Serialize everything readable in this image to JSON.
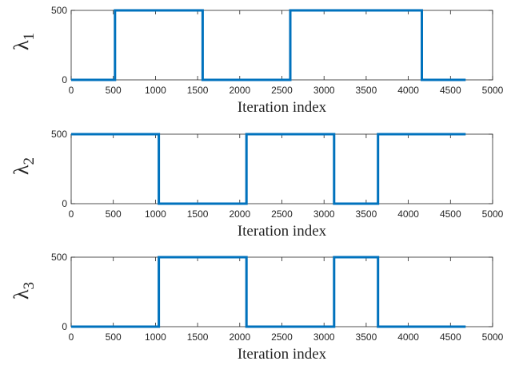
{
  "chart_data": [
    {
      "type": "line",
      "xlabel": "Iteration index",
      "ylabel": "λ",
      "ylabel_subscript": "1",
      "xlim": [
        0,
        5000
      ],
      "ylim": [
        0,
        500
      ],
      "xticks": [
        "0",
        "500",
        "1000",
        "1500",
        "2000",
        "2500",
        "3000",
        "3500",
        "4000",
        "4500",
        "5000"
      ],
      "yticks": [
        "0",
        "500"
      ],
      "grid": false,
      "series": [
        {
          "color": "#0072bd",
          "x": [
            0,
            520,
            520,
            1560,
            1560,
            2600,
            2600,
            4160,
            4160,
            4680
          ],
          "y": [
            0,
            0,
            500,
            500,
            0,
            0,
            500,
            500,
            0,
            0
          ]
        }
      ]
    },
    {
      "type": "line",
      "xlabel": "Iteration index",
      "ylabel": "λ",
      "ylabel_subscript": "2",
      "xlim": [
        0,
        5000
      ],
      "ylim": [
        0,
        500
      ],
      "xticks": [
        "0",
        "500",
        "1000",
        "1500",
        "2000",
        "2500",
        "3000",
        "3500",
        "4000",
        "4500",
        "5000"
      ],
      "yticks": [
        "0",
        "500"
      ],
      "grid": false,
      "series": [
        {
          "color": "#0072bd",
          "x": [
            0,
            1040,
            1040,
            2080,
            2080,
            3120,
            3120,
            3640,
            3640,
            4680
          ],
          "y": [
            500,
            500,
            0,
            0,
            500,
            500,
            0,
            0,
            500,
            500
          ]
        }
      ]
    },
    {
      "type": "line",
      "xlabel": "Iteration index",
      "ylabel": "λ",
      "ylabel_subscript": "3",
      "xlim": [
        0,
        5000
      ],
      "ylim": [
        0,
        500
      ],
      "xticks": [
        "0",
        "500",
        "1000",
        "1500",
        "2000",
        "2500",
        "3000",
        "3500",
        "4000",
        "4500",
        "5000"
      ],
      "yticks": [
        "0",
        "500"
      ],
      "grid": false,
      "series": [
        {
          "color": "#0072bd",
          "x": [
            0,
            1040,
            1040,
            2080,
            2080,
            3120,
            3120,
            3640,
            3640,
            4680
          ],
          "y": [
            0,
            0,
            500,
            500,
            0,
            0,
            500,
            500,
            0,
            0
          ]
        }
      ]
    }
  ]
}
